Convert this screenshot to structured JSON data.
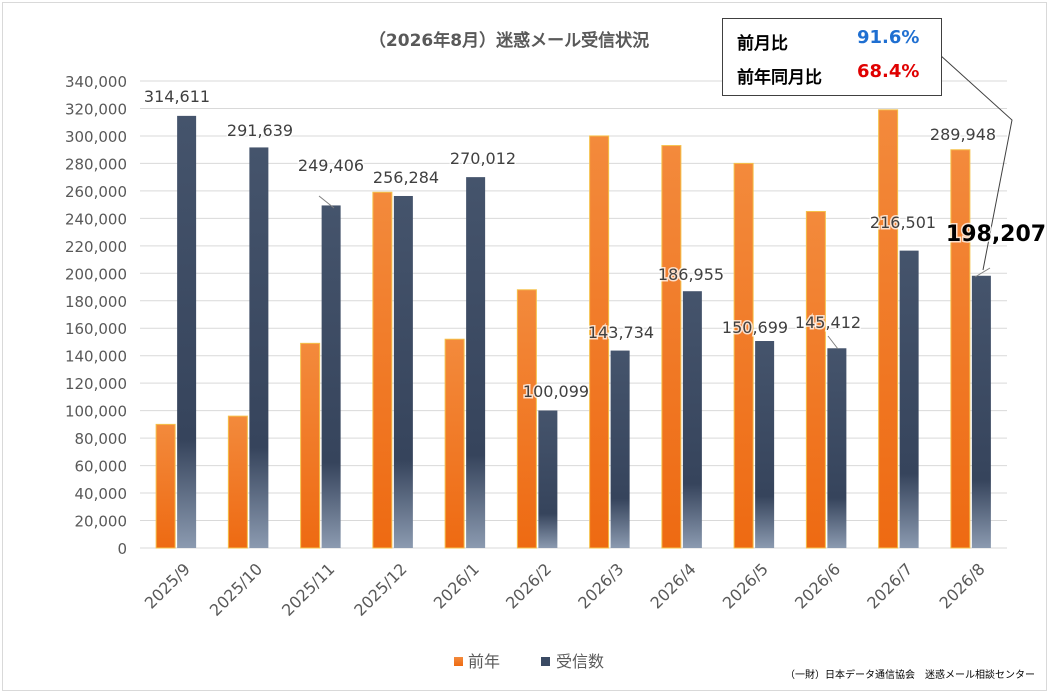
{
  "chart_data": {
    "type": "bar",
    "title": "（2026年8月）迷惑メール受信状況",
    "categories": [
      "2025/9",
      "2025/10",
      "2025/11",
      "2025/12",
      "2026/1",
      "2026/2",
      "2026/3",
      "2026/4",
      "2026/5",
      "2026/6",
      "2026/7",
      "2026/8"
    ],
    "series": [
      {
        "name": "前年",
        "values": [
          90000,
          96000,
          149000,
          259000,
          152000,
          188000,
          300000,
          293000,
          280000,
          245000,
          319000,
          289948
        ]
      },
      {
        "name": "受信数",
        "values": [
          314611,
          291639,
          249406,
          256284,
          270012,
          100099,
          143734,
          186955,
          150699,
          145412,
          216501,
          198207
        ]
      }
    ],
    "data_labels": [
      "314,611",
      "291,639",
      "249,406",
      "256,284",
      "270,012",
      "100,099",
      "143,734",
      "186,955",
      "150,699",
      "145,412",
      "216,501",
      "289,948",
      "198,207"
    ],
    "ylim": [
      0,
      340000
    ],
    "yticks": [
      "0",
      "20,000",
      "40,000",
      "60,000",
      "80,000",
      "100,000",
      "120,000",
      "140,000",
      "160,000",
      "180,000",
      "200,000",
      "220,000",
      "240,000",
      "260,000",
      "280,000",
      "300,000",
      "320,000",
      "340,000"
    ],
    "grid": true,
    "legend_position": "bottom",
    "colors": {
      "prev_year": "#f07f1f",
      "received": "#3a4a63",
      "grid": "#d9d9d9",
      "highlight_label": "#000000"
    }
  },
  "ratio_box": {
    "mom_label": "前月比",
    "mom_value": "91.6%",
    "mom_color": "#1f6fd1",
    "yoy_label": "前年同月比",
    "yoy_value": "68.4%",
    "yoy_color": "#e00000"
  },
  "source": "（一財）日本データ通信協会　迷惑メール相談センター"
}
